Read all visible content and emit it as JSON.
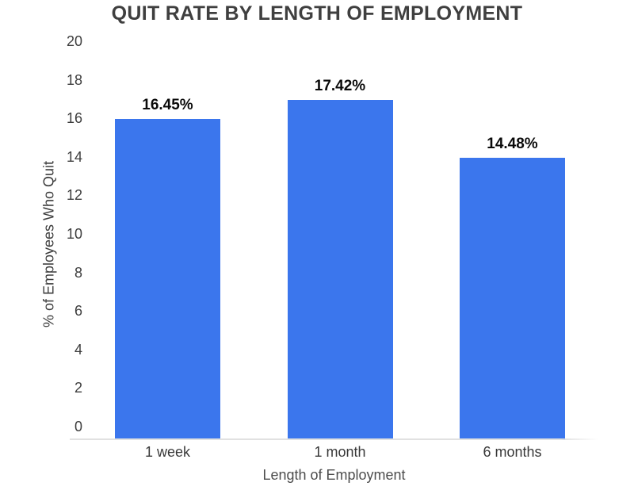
{
  "chart_data": {
    "type": "bar",
    "title": "QUIT RATE BY LENGTH OF EMPLOYMENT",
    "categories": [
      "1 week",
      "1 month",
      "6 months"
    ],
    "values": [
      16.45,
      17.42,
      14.48
    ],
    "data_labels": [
      "16.45%",
      "17.42%",
      "14.48%"
    ],
    "xlabel": "Length of Employment",
    "ylabel": "% of Employees Who Quit",
    "ylim": [
      0,
      20
    ],
    "yticks": [
      0,
      2,
      4,
      6,
      8,
      10,
      12,
      14,
      16,
      18,
      20
    ],
    "grid": false,
    "legend_position": "none",
    "colors": {
      "bar": "#3b76ed",
      "title_text": "#3f3f3f",
      "axis_text": "#3d3d3d",
      "category_text": "#383838",
      "data_label_text": "#0a0a0a",
      "xtitle_text": "#4d4d4d",
      "axis_line": "#e1e1e1",
      "background": "#ffffff"
    }
  }
}
